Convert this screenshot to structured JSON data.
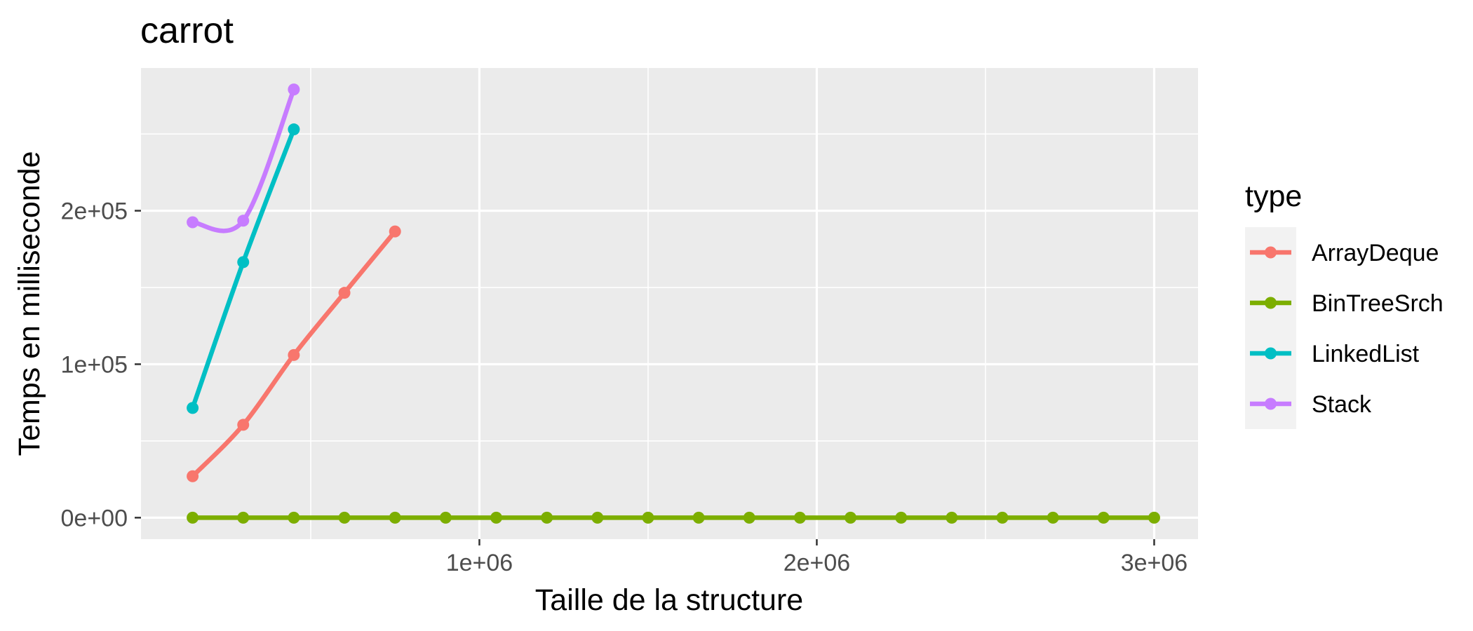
{
  "chart_data": {
    "type": "line",
    "title": "carrot",
    "xlabel": "Taille de la structure",
    "ylabel": "Temps en milliseconde",
    "xlim": [
      -3000,
      3130000
    ],
    "ylim": [
      -14000,
      293000
    ],
    "x_ticks": [
      {
        "value": 1000000,
        "label": "1e+06"
      },
      {
        "value": 2000000,
        "label": "2e+06"
      },
      {
        "value": 3000000,
        "label": "3e+06"
      }
    ],
    "y_ticks": [
      {
        "value": 0,
        "label": "0e+00"
      },
      {
        "value": 100000,
        "label": "1e+05"
      },
      {
        "value": 200000,
        "label": "2e+05"
      }
    ],
    "x_minor": [
      500000,
      1500000,
      2500000
    ],
    "y_minor": [
      50000,
      150000,
      250000
    ],
    "grid": true,
    "legend": {
      "title": "type",
      "position": "right"
    },
    "series": [
      {
        "name": "ArrayDeque",
        "color": "#F8766D",
        "x": [
          150000,
          300000,
          450000,
          600000,
          750000
        ],
        "y": [
          27000,
          60500,
          106000,
          146500,
          186500
        ]
      },
      {
        "name": "BinTreeSrch",
        "color": "#7CAE00",
        "x": [
          150000,
          300000,
          450000,
          600000,
          750000,
          900000,
          1050000,
          1200000,
          1350000,
          1500000,
          1650000,
          1800000,
          1950000,
          2100000,
          2250000,
          2400000,
          2550000,
          2700000,
          2850000,
          3000000
        ],
        "y": [
          0,
          0,
          0,
          0,
          0,
          0,
          0,
          0,
          0,
          0,
          0,
          0,
          0,
          0,
          0,
          0,
          0,
          0,
          0,
          0
        ]
      },
      {
        "name": "LinkedList",
        "color": "#00BFC4",
        "x": [
          150000,
          300000,
          450000
        ],
        "y": [
          71500,
          166500,
          253000
        ]
      },
      {
        "name": "Stack",
        "color": "#C77CFF",
        "x": [
          150000,
          300000,
          450000
        ],
        "y": [
          192500,
          193500,
          279000
        ]
      }
    ]
  }
}
